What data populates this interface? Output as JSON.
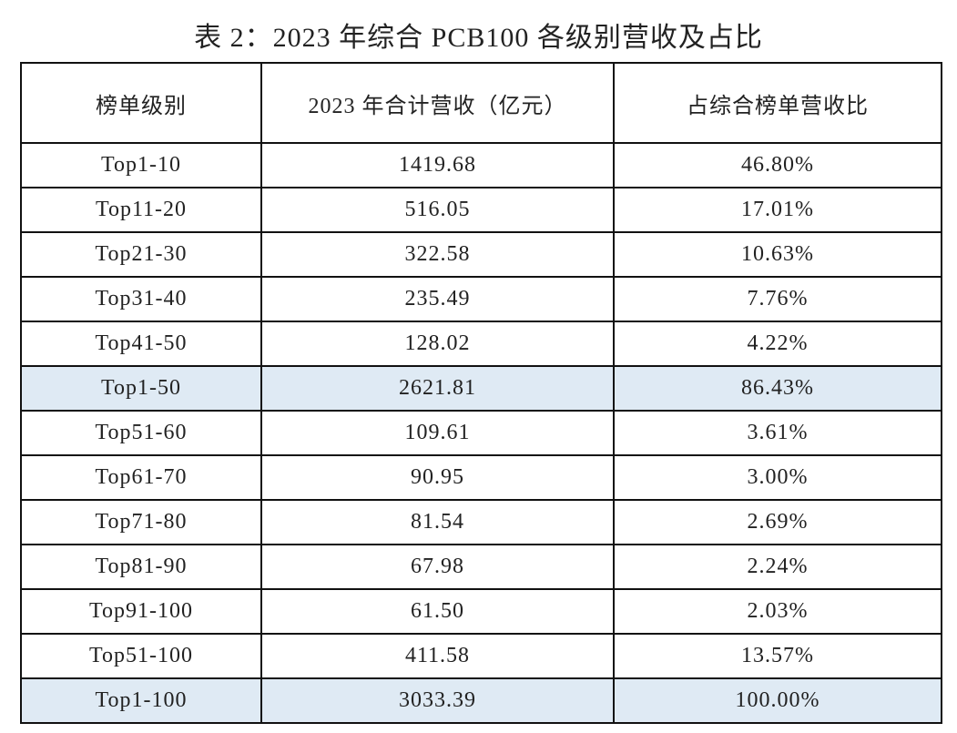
{
  "title": "表 2：2023 年综合 PCB100 各级别营收及占比",
  "table": {
    "header": [
      "榜单级别",
      "2023 年合计营收（亿元）",
      "占综合榜单营收比"
    ],
    "rows": [
      [
        "Top1-10",
        "1419.68",
        "46.80%"
      ],
      [
        "Top11-20",
        "516.05",
        "17.01%"
      ],
      [
        "Top21-30",
        "322.58",
        "10.63%"
      ],
      [
        "Top31-40",
        "235.49",
        "7.76%"
      ],
      [
        "Top41-50",
        "128.02",
        "4.22%"
      ],
      [
        "Top1-50",
        "2621.81",
        "86.43%"
      ],
      [
        "Top51-60",
        "109.61",
        "3.61%"
      ],
      [
        "Top61-70",
        "90.95",
        "3.00%"
      ],
      [
        "Top71-80",
        "81.54",
        "2.69%"
      ],
      [
        "Top81-90",
        "67.98",
        "2.24%"
      ],
      [
        "Top91-100",
        "61.50",
        "2.03%"
      ],
      [
        "Top51-100",
        "411.58",
        "13.57%"
      ],
      [
        "Top1-100",
        "3033.39",
        "100.00%"
      ]
    ]
  }
}
